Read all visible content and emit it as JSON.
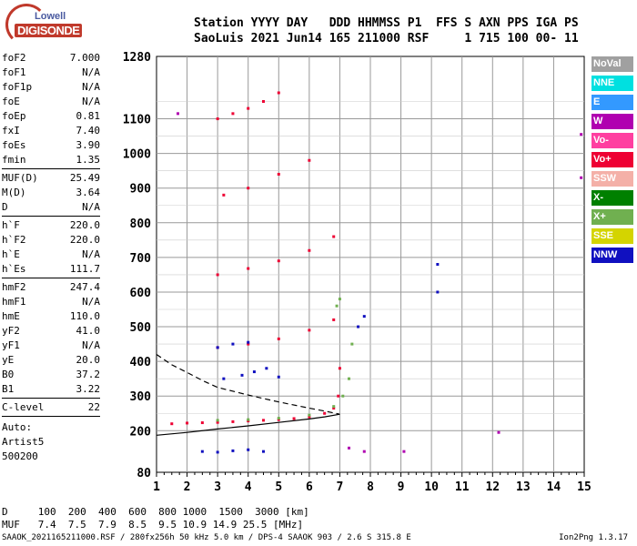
{
  "logo": {
    "line1": "Lowell",
    "line2": "DIGISONDE"
  },
  "header": {
    "line1": "Station YYYY DAY   DDD HHMMSS P1  FFS S AXN PPS IGA PS",
    "line2": "SaoLuis 2021 Jun14 165 211000 RSF     1 715 100 00- 11"
  },
  "params_group1": [
    {
      "k": "foF2",
      "v": "7.000"
    },
    {
      "k": "foF1",
      "v": "N/A"
    },
    {
      "k": "foF1p",
      "v": "N/A"
    },
    {
      "k": "foE",
      "v": "N/A"
    },
    {
      "k": "foEp",
      "v": "0.81"
    },
    {
      "k": "fxI",
      "v": "7.40"
    },
    {
      "k": "foEs",
      "v": "3.90"
    },
    {
      "k": "fmin",
      "v": "1.35"
    }
  ],
  "params_group2": [
    {
      "k": "MUF(D)",
      "v": "25.49"
    },
    {
      "k": "M(D)",
      "v": "3.64"
    },
    {
      "k": "D",
      "v": "N/A"
    }
  ],
  "params_group3": [
    {
      "k": "h`F",
      "v": "220.0"
    },
    {
      "k": "h`F2",
      "v": "220.0"
    },
    {
      "k": "h`E",
      "v": "N/A"
    },
    {
      "k": "h`Es",
      "v": "111.7"
    }
  ],
  "params_group4": [
    {
      "k": "hmF2",
      "v": "247.4"
    },
    {
      "k": "hmF1",
      "v": "N/A"
    },
    {
      "k": "hmE",
      "v": "110.0"
    },
    {
      "k": "yF2",
      "v": "41.0"
    },
    {
      "k": "yF1",
      "v": "N/A"
    },
    {
      "k": "yE",
      "v": "20.0"
    },
    {
      "k": "B0",
      "v": "37.2"
    },
    {
      "k": "B1",
      "v": "3.22"
    }
  ],
  "params_group5": [
    {
      "k": "C-level",
      "v": "22"
    }
  ],
  "auto": {
    "line1": "Auto:",
    "line2": "Artist5",
    "line3": "500200"
  },
  "footer": {
    "d_line": "D     100  200  400  600  800 1000  1500  3000 [km]",
    "muf_line": "MUF   7.4  7.5  7.9  8.5  9.5 10.9 14.9 25.5 [MHz]"
  },
  "bottom_info": "SAAOK_2021165211000.RSF / 280fx256h 50 kHz 5.0 km / DPS-4 SAAOK 903 / 2.6 S 315.8 E",
  "version": "Ion2Png 1.3.17",
  "legend": [
    {
      "label": "NoVal",
      "color": "#a0a0a0"
    },
    {
      "label": "NNE",
      "color": "#00e0e0"
    },
    {
      "label": "E",
      "color": "#3399ff"
    },
    {
      "label": "W",
      "color": "#b000b0"
    },
    {
      "label": "Vo-",
      "color": "#ff3fa0"
    },
    {
      "label": "Vo+",
      "color": "#ee0033"
    },
    {
      "label": "SSW",
      "color": "#f4b0a8"
    },
    {
      "label": "X-",
      "color": "#008000"
    },
    {
      "label": "X+",
      "color": "#70b050"
    },
    {
      "label": "SSE",
      "color": "#d4d400"
    },
    {
      "label": "NNW",
      "color": "#1010c0"
    }
  ],
  "chart_data": {
    "type": "scatter",
    "xlim": [
      1,
      15
    ],
    "ylim": [
      80,
      1280
    ],
    "x_ticks": [
      "1",
      "2",
      "3",
      "4",
      "5",
      "6",
      "7",
      "8",
      "9",
      "10",
      "11",
      "12",
      "13",
      "14",
      "15"
    ],
    "y_ticks": [
      "80",
      "200",
      "300",
      "400",
      "500",
      "600",
      "700",
      "800",
      "900",
      "1000",
      "1100",
      "1280"
    ],
    "grid": true,
    "series": [
      {
        "name": "Vo+",
        "color": "#ee0033",
        "points": [
          [
            1.5,
            220
          ],
          [
            2,
            222
          ],
          [
            2.5,
            223
          ],
          [
            3,
            224
          ],
          [
            3.5,
            226
          ],
          [
            4,
            228
          ],
          [
            4.5,
            230
          ],
          [
            5,
            232
          ],
          [
            5.5,
            235
          ],
          [
            6,
            240
          ],
          [
            6.5,
            250
          ],
          [
            6.8,
            265
          ],
          [
            6.95,
            300
          ],
          [
            7.0,
            380
          ],
          [
            3,
            440
          ],
          [
            4,
            450
          ],
          [
            5,
            465
          ],
          [
            6,
            490
          ],
          [
            6.8,
            520
          ],
          [
            3,
            650
          ],
          [
            4,
            668
          ],
          [
            5,
            690
          ],
          [
            6,
            720
          ],
          [
            6.8,
            760
          ],
          [
            3.2,
            880
          ],
          [
            4,
            900
          ],
          [
            5,
            940
          ],
          [
            6,
            980
          ],
          [
            3,
            1100
          ],
          [
            3.5,
            1115
          ],
          [
            4,
            1130
          ],
          [
            4.5,
            1150
          ],
          [
            5,
            1175
          ]
        ]
      },
      {
        "name": "X+",
        "color": "#70b050",
        "points": [
          [
            3,
            230
          ],
          [
            4,
            232
          ],
          [
            5,
            236
          ],
          [
            6,
            245
          ],
          [
            6.8,
            270
          ],
          [
            7.1,
            300
          ],
          [
            7.3,
            350
          ],
          [
            7.4,
            450
          ],
          [
            6.9,
            560
          ],
          [
            7.0,
            580
          ]
        ]
      },
      {
        "name": "NNW",
        "color": "#1010c0",
        "points": [
          [
            2.5,
            140
          ],
          [
            3,
            138
          ],
          [
            3.5,
            142
          ],
          [
            4,
            145
          ],
          [
            4.5,
            140
          ],
          [
            3.2,
            350
          ],
          [
            3.8,
            360
          ],
          [
            4.2,
            370
          ],
          [
            4.6,
            380
          ],
          [
            5.0,
            355
          ],
          [
            3,
            440
          ],
          [
            3.5,
            450
          ],
          [
            4,
            455
          ],
          [
            7.6,
            500
          ],
          [
            7.8,
            530
          ],
          [
            10.2,
            600
          ],
          [
            10.2,
            680
          ]
        ]
      },
      {
        "name": "W",
        "color": "#b000b0",
        "points": [
          [
            1.7,
            1115
          ],
          [
            7.3,
            150
          ],
          [
            7.8,
            140
          ],
          [
            9.1,
            140
          ],
          [
            12.2,
            195
          ],
          [
            14.9,
            1055
          ],
          [
            14.9,
            930
          ]
        ]
      }
    ],
    "curves": {
      "profile_solid": [
        [
          1,
          187
        ],
        [
          2,
          195
        ],
        [
          3,
          205
        ],
        [
          4,
          214
        ],
        [
          5,
          224
        ],
        [
          6,
          234
        ],
        [
          6.5,
          240
        ],
        [
          7.0,
          247.4
        ]
      ],
      "profile_dashed": [
        [
          1,
          420
        ],
        [
          1.5,
          390
        ],
        [
          2,
          368
        ],
        [
          2.5,
          345
        ],
        [
          3,
          325
        ],
        [
          4,
          303
        ],
        [
          5,
          283
        ],
        [
          6,
          265
        ],
        [
          6.6,
          255
        ],
        [
          7.0,
          247.4
        ]
      ]
    }
  }
}
